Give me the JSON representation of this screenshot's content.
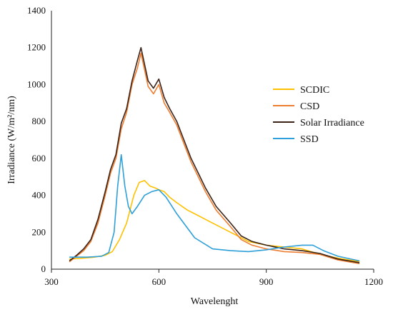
{
  "chart_data": {
    "type": "line",
    "title": "",
    "xlabel": "Wavelenght",
    "ylabel": "Irradiance  (W/m²/nm)",
    "xlim": [
      300,
      1200
    ],
    "ylim": [
      0,
      1400
    ],
    "xticks": [
      300,
      600,
      900,
      1200
    ],
    "yticks": [
      0,
      200,
      400,
      600,
      800,
      1000,
      1200,
      1400
    ],
    "grid": false,
    "legend_placement": "right",
    "series": [
      {
        "name": "SCDIC",
        "color": "#FFC000",
        "x": [
          350,
          380,
          420,
          450,
          470,
          490,
          510,
          530,
          545,
          560,
          575,
          590,
          600,
          615,
          630,
          650,
          680,
          700,
          750,
          800,
          850,
          900,
          950,
          1000,
          1050,
          1100,
          1160
        ],
        "y": [
          55,
          58,
          65,
          75,
          95,
          160,
          250,
          400,
          470,
          480,
          450,
          440,
          430,
          420,
          390,
          360,
          320,
          300,
          250,
          200,
          150,
          130,
          120,
          110,
          80,
          60,
          40
        ]
      },
      {
        "name": "CSD",
        "color": "#ED7D31",
        "x": [
          350,
          370,
          390,
          410,
          430,
          450,
          465,
          480,
          495,
          510,
          525,
          540,
          550,
          560,
          570,
          585,
          600,
          615,
          630,
          650,
          670,
          690,
          710,
          730,
          760,
          800,
          830,
          860,
          900,
          950,
          1000,
          1050,
          1100,
          1160
        ],
        "y": [
          40,
          70,
          100,
          150,
          250,
          400,
          520,
          600,
          760,
          850,
          1000,
          1090,
          1170,
          1080,
          990,
          950,
          1000,
          900,
          850,
          780,
          680,
          580,
          500,
          420,
          320,
          230,
          160,
          130,
          110,
          95,
          90,
          80,
          50,
          30
        ]
      },
      {
        "name": "Solar Irradiance",
        "color": "#3B2318",
        "x": [
          350,
          370,
          390,
          410,
          430,
          450,
          465,
          480,
          495,
          510,
          525,
          540,
          550,
          560,
          570,
          585,
          600,
          615,
          630,
          650,
          670,
          690,
          710,
          730,
          760,
          800,
          830,
          860,
          900,
          950,
          1000,
          1050,
          1100,
          1160
        ],
        "y": [
          45,
          75,
          110,
          160,
          270,
          420,
          540,
          620,
          790,
          870,
          1020,
          1130,
          1200,
          1110,
          1020,
          980,
          1030,
          930,
          870,
          800,
          700,
          600,
          520,
          440,
          340,
          250,
          180,
          150,
          130,
          110,
          100,
          85,
          55,
          35
        ]
      },
      {
        "name": "SSD",
        "color": "#2E9FD8",
        "x": [
          350,
          400,
          440,
          460,
          475,
          485,
          495,
          505,
          515,
          525,
          540,
          560,
          580,
          600,
          620,
          650,
          700,
          750,
          800,
          850,
          900,
          950,
          1000,
          1030,
          1060,
          1100,
          1160
        ],
        "y": [
          65,
          65,
          70,
          90,
          200,
          450,
          620,
          450,
          340,
          300,
          340,
          400,
          420,
          430,
          390,
          300,
          170,
          110,
          100,
          95,
          105,
          120,
          130,
          130,
          100,
          70,
          45
        ]
      }
    ]
  }
}
